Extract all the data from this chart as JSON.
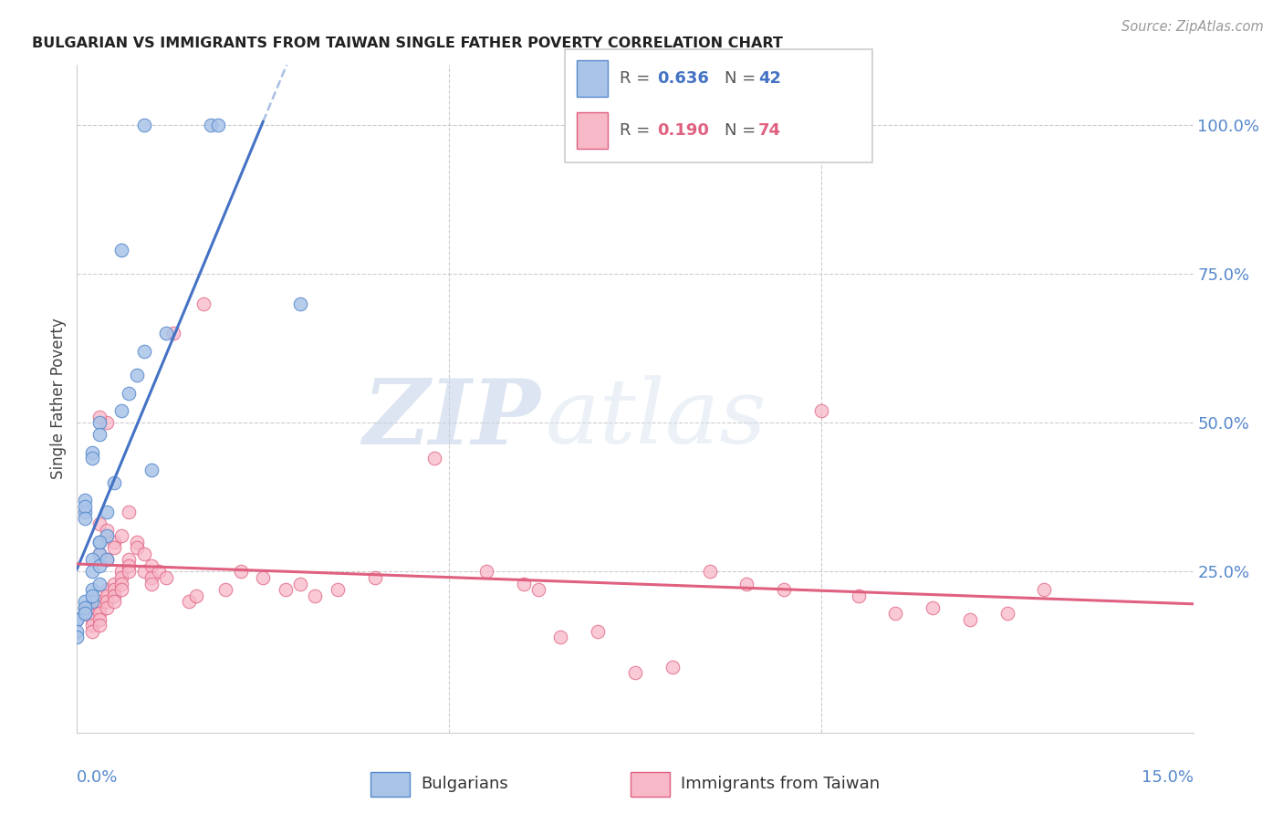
{
  "title": "BULGARIAN VS IMMIGRANTS FROM TAIWAN SINGLE FATHER POVERTY CORRELATION CHART",
  "source": "Source: ZipAtlas.com",
  "ylabel": "Single Father Poverty",
  "ytick_labels": [
    "100.0%",
    "75.0%",
    "50.0%",
    "25.0%"
  ],
  "ytick_values": [
    1.0,
    0.75,
    0.5,
    0.25
  ],
  "xlim": [
    0.0,
    0.15
  ],
  "ylim": [
    -0.02,
    1.1
  ],
  "bulgarian_color": "#aac4e8",
  "taiwan_color": "#f7b8c8",
  "bulgarian_edge": "#5588cc",
  "taiwan_edge": "#e06080",
  "regression_blue": "#4472c4",
  "regression_pink": "#e06080",
  "R_bulgarian": 0.636,
  "N_bulgarian": 42,
  "R_taiwan": 0.19,
  "N_taiwan": 74,
  "watermark_zip": "ZIP",
  "watermark_atlas": "atlas",
  "background_color": "#ffffff",
  "bulgarian_x": [
    0.009,
    0.018,
    0.019,
    0.03,
    0.006,
    0.003,
    0.003,
    0.002,
    0.002,
    0.001,
    0.001,
    0.001,
    0.001,
    0.003,
    0.003,
    0.002,
    0.004,
    0.005,
    0.004,
    0.003,
    0.002,
    0.007,
    0.008,
    0.006,
    0.01,
    0.012,
    0.009,
    0.002,
    0.001,
    0.0,
    0.001,
    0.0,
    0.001,
    0.0,
    0.0,
    0.002,
    0.003,
    0.004,
    0.003,
    0.002,
    0.001,
    0.001
  ],
  "bulgarian_y": [
    1.0,
    1.0,
    1.0,
    0.7,
    0.79,
    0.5,
    0.48,
    0.45,
    0.44,
    0.37,
    0.35,
    0.36,
    0.34,
    0.3,
    0.28,
    0.27,
    0.35,
    0.4,
    0.31,
    0.3,
    0.22,
    0.55,
    0.58,
    0.52,
    0.42,
    0.65,
    0.62,
    0.2,
    0.18,
    0.17,
    0.19,
    0.17,
    0.2,
    0.15,
    0.14,
    0.25,
    0.26,
    0.27,
    0.23,
    0.21,
    0.19,
    0.18
  ],
  "taiwan_x": [
    0.001,
    0.002,
    0.002,
    0.002,
    0.002,
    0.003,
    0.003,
    0.003,
    0.003,
    0.003,
    0.004,
    0.004,
    0.004,
    0.004,
    0.005,
    0.005,
    0.005,
    0.005,
    0.006,
    0.006,
    0.006,
    0.006,
    0.007,
    0.007,
    0.007,
    0.008,
    0.008,
    0.009,
    0.009,
    0.01,
    0.01,
    0.01,
    0.011,
    0.012,
    0.013,
    0.015,
    0.016,
    0.017,
    0.02,
    0.022,
    0.025,
    0.028,
    0.03,
    0.032,
    0.035,
    0.04,
    0.048,
    0.055,
    0.06,
    0.062,
    0.065,
    0.07,
    0.075,
    0.08,
    0.085,
    0.09,
    0.095,
    0.1,
    0.105,
    0.11,
    0.115,
    0.12,
    0.125,
    0.13,
    0.003,
    0.004,
    0.005,
    0.006,
    0.007,
    0.003,
    0.004,
    0.005,
    0.004,
    0.003
  ],
  "taiwan_y": [
    0.18,
    0.19,
    0.17,
    0.16,
    0.15,
    0.2,
    0.19,
    0.18,
    0.17,
    0.16,
    0.22,
    0.21,
    0.2,
    0.19,
    0.23,
    0.22,
    0.21,
    0.2,
    0.25,
    0.24,
    0.23,
    0.22,
    0.27,
    0.26,
    0.25,
    0.3,
    0.29,
    0.28,
    0.25,
    0.26,
    0.24,
    0.23,
    0.25,
    0.24,
    0.65,
    0.2,
    0.21,
    0.7,
    0.22,
    0.25,
    0.24,
    0.22,
    0.23,
    0.21,
    0.22,
    0.24,
    0.44,
    0.25,
    0.23,
    0.22,
    0.14,
    0.15,
    0.08,
    0.09,
    0.25,
    0.23,
    0.22,
    0.52,
    0.21,
    0.18,
    0.19,
    0.17,
    0.18,
    0.22,
    0.33,
    0.32,
    0.3,
    0.31,
    0.35,
    0.28,
    0.27,
    0.29,
    0.5,
    0.51
  ]
}
